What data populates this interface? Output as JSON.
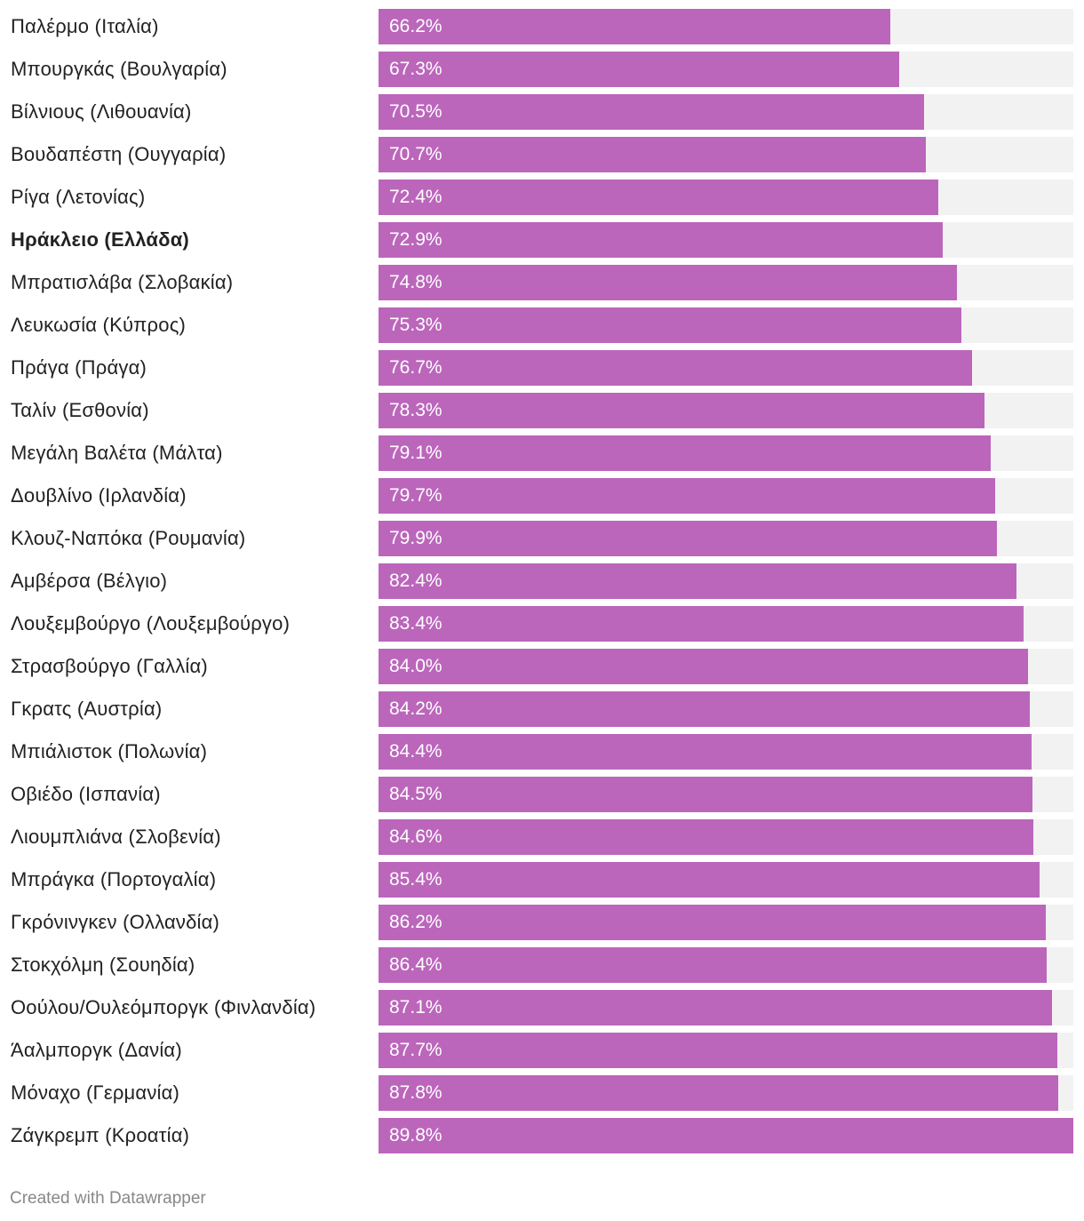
{
  "chart_data": {
    "type": "bar",
    "orientation": "horizontal",
    "categories": [
      "Παλέρμο (Ιταλία)",
      "Μπουργκάς (Βουλγαρία)",
      "Βίλνιους (Λιθουανία)",
      "Βουδαπέστη (Ουγγαρία)",
      "Ρίγα (Λετονίας)",
      "Ηράκλειο (Ελλάδα)",
      "Μπρατισλάβα (Σλοβακία)",
      "Λευκωσία (Κύπρος)",
      "Πράγα (Πράγα)",
      "Ταλίν (Εσθονία)",
      "Μεγάλη Βαλέτα (Μάλτα)",
      "Δουβλίνο (Ιρλανδία)",
      "Κλουζ-Ναπόκα (Ρουμανία)",
      "Αμβέρσα (Βέλγιο)",
      "Λουξεμβούργο (Λουξεμβούργο)",
      "Στρασβούργο (Γαλλία)",
      "Γκρατς (Αυστρία)",
      "Μπιάλιστοκ (Πολωνία)",
      "Οβιέδο (Ισπανία)",
      "Λιουμπλιάνα (Σλοβενία)",
      "Μπράγκα (Πορτογαλία)",
      "Γκρόνινγκεν (Ολλανδία)",
      "Στοκχόλμη (Σουηδία)",
      "Οούλου/Ουλεόμποργκ (Φινλανδία)",
      "Άαλμποργκ (Δανία)",
      "Μόναχο (Γερμανία)",
      "Ζάγκρεμπ (Κροατία)"
    ],
    "values": [
      66.2,
      67.3,
      70.5,
      70.7,
      72.4,
      72.9,
      74.8,
      75.3,
      76.7,
      78.3,
      79.1,
      79.7,
      79.9,
      82.4,
      83.4,
      84.0,
      84.2,
      84.4,
      84.5,
      84.6,
      85.4,
      86.2,
      86.4,
      87.1,
      87.7,
      87.8,
      89.8
    ],
    "value_labels": [
      "66.2%",
      "67.3%",
      "70.5%",
      "70.7%",
      "72.4%",
      "72.9%",
      "74.8%",
      "75.3%",
      "76.7%",
      "78.3%",
      "79.1%",
      "79.7%",
      "79.9%",
      "82.4%",
      "83.4%",
      "84.0%",
      "84.2%",
      "84.4%",
      "84.5%",
      "84.6%",
      "85.4%",
      "86.2%",
      "86.4%",
      "87.1%",
      "87.7%",
      "87.8%",
      "89.8%"
    ],
    "highlighted_category": "Ηράκλειο (Ελλάδα)",
    "xlim": [
      0,
      89.8
    ],
    "unit": "%",
    "colors": {
      "bar": "#bb66bb",
      "track": "#f2f2f2",
      "label": "#222222",
      "value_text": "#ffffff"
    }
  },
  "footer": {
    "credit": "Created with Datawrapper"
  }
}
